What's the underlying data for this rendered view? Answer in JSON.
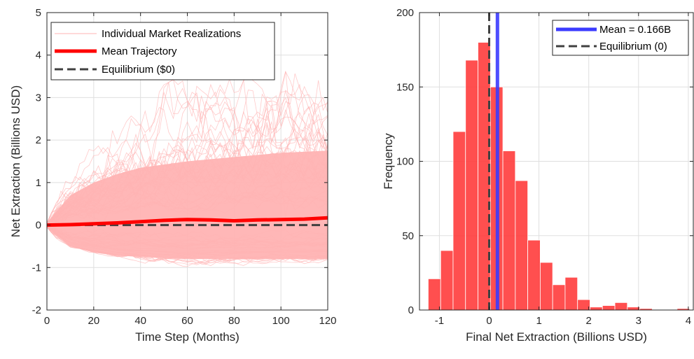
{
  "chart_data": [
    {
      "type": "line",
      "xlabel": "Time Step (Months)",
      "ylabel": "Net Extraction (Billions USD)",
      "xlim": [
        0,
        120
      ],
      "ylim": [
        -2,
        5
      ],
      "xticks": [
        0,
        20,
        40,
        60,
        80,
        100,
        120
      ],
      "yticks": [
        -2,
        -1,
        0,
        1,
        2,
        3,
        4,
        5
      ],
      "grid": true,
      "legend_position": "top-left",
      "series": [
        {
          "name": "Individual Market Realizations",
          "color": "#ffb3b3",
          "style": "thin-many-paths",
          "envelope": {
            "x": [
              0,
              10,
              20,
              30,
              40,
              60,
              80,
              100,
              120
            ],
            "upper": [
              0.05,
              1.3,
              1.9,
              2.5,
              3.0,
              3.6,
              3.9,
              4.4,
              4.0
            ],
            "lower": [
              -0.05,
              -0.7,
              -0.85,
              -1.0,
              -1.1,
              -1.2,
              -1.15,
              -1.1,
              -1.1
            ],
            "dense_upper": [
              0.05,
              0.7,
              1.0,
              1.2,
              1.35,
              1.5,
              1.6,
              1.7,
              1.75
            ],
            "dense_lower": [
              -0.05,
              -0.5,
              -0.65,
              -0.72,
              -0.75,
              -0.8,
              -0.8,
              -0.8,
              -0.8
            ]
          }
        },
        {
          "name": "Mean Trajectory",
          "color": "#ff0000",
          "x": [
            0,
            10,
            20,
            30,
            40,
            50,
            60,
            70,
            80,
            90,
            100,
            110,
            120
          ],
          "y": [
            0.0,
            0.01,
            0.03,
            0.05,
            0.08,
            0.11,
            0.13,
            0.12,
            0.1,
            0.12,
            0.13,
            0.14,
            0.17
          ]
        },
        {
          "name": "Equilibrium ($0)",
          "color": "#404040",
          "style": "dashed",
          "x": [
            0,
            120
          ],
          "y": [
            0,
            0
          ]
        }
      ]
    },
    {
      "type": "bar",
      "xlabel": "Final Net Extraction (Billions USD)",
      "ylabel": "Frequency",
      "xlim": [
        -1.4,
        4.1
      ],
      "ylim": [
        0,
        200
      ],
      "xticks": [
        -1,
        0,
        1,
        2,
        3,
        4
      ],
      "yticks": [
        0,
        50,
        100,
        150,
        200
      ],
      "grid": true,
      "legend_position": "top-right",
      "bar_color": "#ff3c3c",
      "bin_edges": [
        -1.225,
        -0.975,
        -0.725,
        -0.475,
        -0.225,
        0.025,
        0.275,
        0.525,
        0.775,
        1.025,
        1.275,
        1.525,
        1.775,
        2.025,
        2.275,
        2.525,
        2.775,
        3.025,
        3.275,
        3.525,
        3.775,
        4.025
      ],
      "counts": [
        21,
        40,
        120,
        168,
        180,
        150,
        107,
        87,
        47,
        32,
        17,
        22,
        7,
        2,
        3,
        5,
        2,
        1,
        0,
        0,
        1
      ],
      "lines": [
        {
          "name": "Mean = 0.166B",
          "x": 0.166,
          "color": "#3b3bff",
          "style": "solid"
        },
        {
          "name": "Equilibrium (0)",
          "x": 0,
          "color": "#404040",
          "style": "dashed"
        }
      ]
    }
  ]
}
